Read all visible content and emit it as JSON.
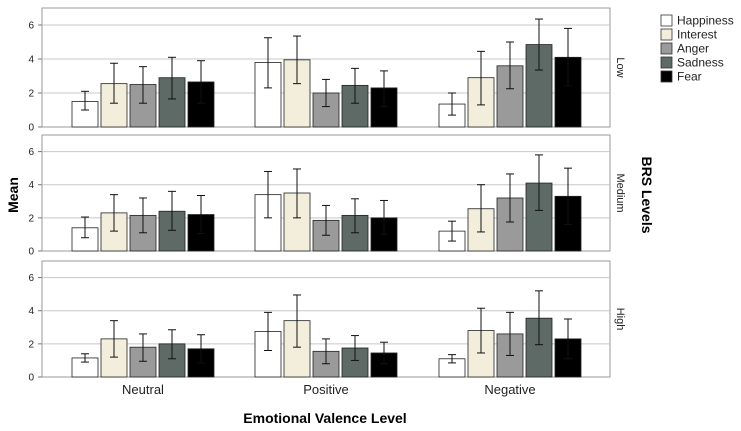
{
  "chart_data": {
    "type": "bar",
    "title": "",
    "xlabel": "Emotional Valence Level",
    "ylabel": "Mean",
    "facet_label": "BRS Levels",
    "ylim": [
      0,
      7
    ],
    "yticks": [
      "0",
      "2",
      "4",
      "6"
    ],
    "categories": [
      "Neutral",
      "Positive",
      "Negative"
    ],
    "series_names": [
      "Happiness",
      "Interest",
      "Anger",
      "Sadness",
      "Fear"
    ],
    "series_colors": [
      "#ffffff",
      "#f2eedb",
      "#9a9a9a",
      "#5d6a66",
      "#000000"
    ],
    "legend_position": "top-right",
    "grid": "horizontal",
    "panels": [
      {
        "label": "Low",
        "series": [
          {
            "name": "Happiness",
            "values": [
              1.5,
              3.8,
              1.35
            ],
            "err_low": [
              1.0,
              2.3,
              0.7
            ],
            "err_high": [
              2.1,
              5.25,
              2.0
            ]
          },
          {
            "name": "Interest",
            "values": [
              2.55,
              3.95,
              2.9
            ],
            "err_low": [
              1.4,
              2.55,
              1.3
            ],
            "err_high": [
              3.75,
              5.35,
              4.45
            ]
          },
          {
            "name": "Anger",
            "values": [
              2.5,
              2.0,
              3.6
            ],
            "err_low": [
              1.4,
              1.2,
              2.25
            ],
            "err_high": [
              3.55,
              2.8,
              5.0
            ]
          },
          {
            "name": "Sadness",
            "values": [
              2.9,
              2.45,
              4.85
            ],
            "err_low": [
              1.65,
              1.4,
              3.35
            ],
            "err_high": [
              4.1,
              3.45,
              6.35
            ]
          },
          {
            "name": "Fear",
            "values": [
              2.65,
              2.3,
              4.1
            ],
            "err_low": [
              1.4,
              1.2,
              2.45
            ],
            "err_high": [
              3.9,
              3.3,
              5.8
            ]
          }
        ]
      },
      {
        "label": "Medium",
        "series": [
          {
            "name": "Happiness",
            "values": [
              1.4,
              3.4,
              1.2
            ],
            "err_low": [
              0.8,
              2.0,
              0.6
            ],
            "err_high": [
              2.05,
              4.8,
              1.8
            ]
          },
          {
            "name": "Interest",
            "values": [
              2.3,
              3.5,
              2.55
            ],
            "err_low": [
              1.2,
              2.0,
              1.15
            ],
            "err_high": [
              3.4,
              4.95,
              4.0
            ]
          },
          {
            "name": "Anger",
            "values": [
              2.15,
              1.85,
              3.2
            ],
            "err_low": [
              1.1,
              0.95,
              1.75
            ],
            "err_high": [
              3.2,
              2.75,
              4.65
            ]
          },
          {
            "name": "Sadness",
            "values": [
              2.4,
              2.15,
              4.1
            ],
            "err_low": [
              1.25,
              1.1,
              2.45
            ],
            "err_high": [
              3.6,
              3.15,
              5.8
            ]
          },
          {
            "name": "Fear",
            "values": [
              2.2,
              2.0,
              3.3
            ],
            "err_low": [
              1.05,
              1.0,
              1.6
            ],
            "err_high": [
              3.35,
              3.05,
              5.0
            ]
          }
        ]
      },
      {
        "label": "High",
        "series": [
          {
            "name": "Happiness",
            "values": [
              1.15,
              2.75,
              1.1
            ],
            "err_low": [
              0.9,
              1.6,
              0.85
            ],
            "err_high": [
              1.4,
              3.9,
              1.35
            ]
          },
          {
            "name": "Interest",
            "values": [
              2.3,
              3.4,
              2.8
            ],
            "err_low": [
              1.2,
              1.8,
              1.45
            ],
            "err_high": [
              3.4,
              4.95,
              4.15
            ]
          },
          {
            "name": "Anger",
            "values": [
              1.8,
              1.55,
              2.6
            ],
            "err_low": [
              0.95,
              0.8,
              1.3
            ],
            "err_high": [
              2.6,
              2.3,
              3.9
            ]
          },
          {
            "name": "Sadness",
            "values": [
              2.0,
              1.75,
              3.55
            ],
            "err_low": [
              1.1,
              1.0,
              1.95
            ],
            "err_high": [
              2.85,
              2.5,
              5.2
            ]
          },
          {
            "name": "Fear",
            "values": [
              1.7,
              1.45,
              2.3
            ],
            "err_low": [
              0.85,
              0.8,
              1.1
            ],
            "err_high": [
              2.55,
              2.1,
              3.5
            ]
          }
        ]
      }
    ]
  }
}
